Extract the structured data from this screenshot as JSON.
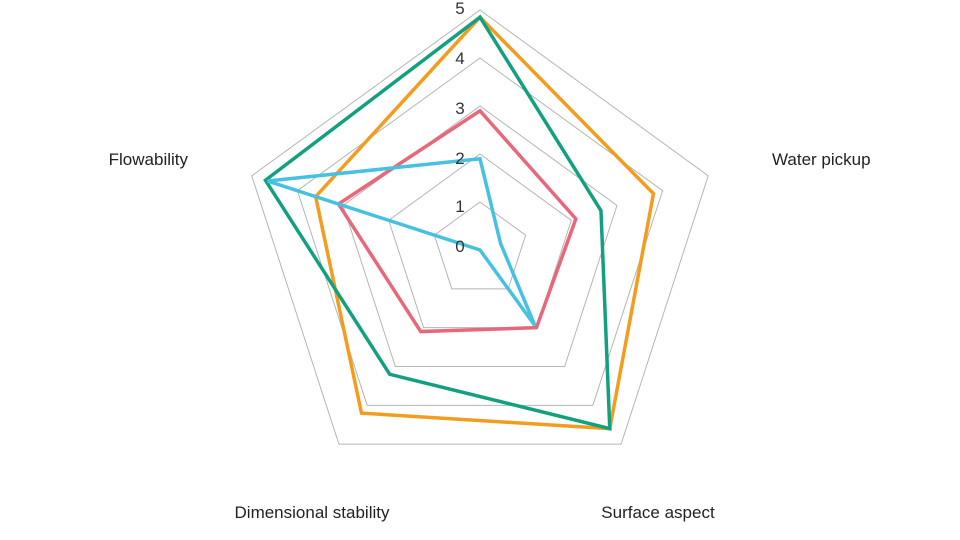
{
  "chart_data": {
    "type": "radar",
    "axes": [
      "Flowability",
      "Water pickup",
      "Surface aspect",
      "Dimensional stability"
    ],
    "axis_order_clockwise_from_top": [
      "",
      "Water pickup",
      "Surface aspect",
      "Dimensional stability",
      "Flowability"
    ],
    "r_ticks": [
      "0",
      "1",
      "2",
      "3",
      "4",
      "5"
    ],
    "r_range": [
      0,
      5
    ],
    "grid": true,
    "series": [
      {
        "color": "#f39c1f",
        "values": [
          4.85,
          3.8,
          4.6,
          4.2,
          3.6
        ]
      },
      {
        "color": "#12a07f",
        "values": [
          4.85,
          2.65,
          4.6,
          3.2,
          4.7
        ]
      },
      {
        "color": "#e8677a",
        "values": [
          2.9,
          2.1,
          2.0,
          2.1,
          3.1
        ]
      },
      {
        "color": "#46c1e0",
        "values": [
          1.9,
          0.45,
          1.95,
          0.0,
          4.65
        ]
      }
    ]
  }
}
